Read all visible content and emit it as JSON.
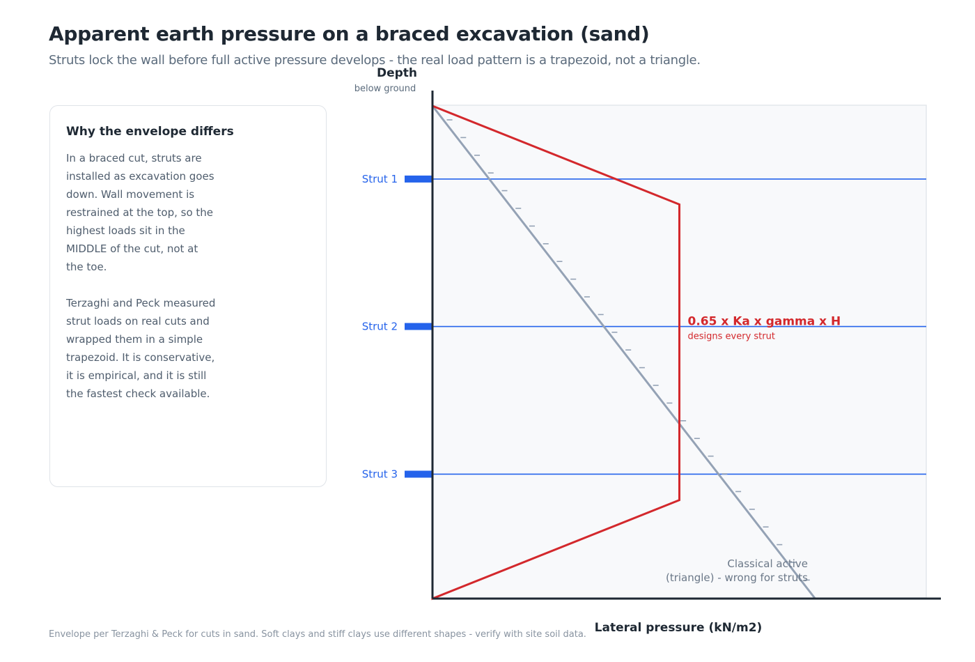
{
  "header": {
    "title": "Apparent earth pressure on a braced excavation (sand)",
    "subtitle": "Struts lock the wall before full active pressure develops - the real load pattern is a trapezoid, not a triangle."
  },
  "info_card": {
    "heading": "Why the envelope differs",
    "paragraph_1": "In a braced cut, struts are\ninstalled as excavation goes\ndown. Wall movement is\nrestrained at the top, so the\nhighest loads sit in the\nMIDDLE of the cut, not at\nthe toe.",
    "paragraph_2": "Terzaghi and Peck measured\nstrut loads on real cuts and\nwrapped them in a simple\ntrapezoid. It is conservative,\nit is empirical, and it is still\nthe fastest check available."
  },
  "diagram": {
    "depth_axis_label": "Depth",
    "depth_axis_sublabel": "below ground",
    "pressure_axis_label": "Lateral pressure  (kN/m2)",
    "struts": [
      {
        "label": "Strut 1",
        "depth_fraction": 0.1484
      },
      {
        "label": "Strut 2",
        "depth_fraction": 0.4477
      },
      {
        "label": "Strut 3",
        "depth_fraction": 0.7475
      }
    ],
    "trapezoid": {
      "top_depth_fraction": 0.2,
      "bottom_depth_fraction": 0.8,
      "pressure_fraction": 0.5
    },
    "triangle_max_pressure_fraction": 0.775,
    "envelope_label": "0.65 x Ka x gamma x H",
    "envelope_sublabel": "designs every strut",
    "classical_label_line1": "Classical active",
    "classical_label_line2": "(triangle) - wrong for struts"
  },
  "colors": {
    "trapezoid": "#d3282c",
    "triangle": "#94a2b5",
    "strut": "#2563eb",
    "axis": "#1e2833",
    "plot_background": "#f8f9fb",
    "plot_border": "#e3e7ec"
  },
  "footer": {
    "note": "Envelope per Terzaghi & Peck for cuts in sand. Soft clays and stiff clays use different shapes - verify with site soil data."
  }
}
